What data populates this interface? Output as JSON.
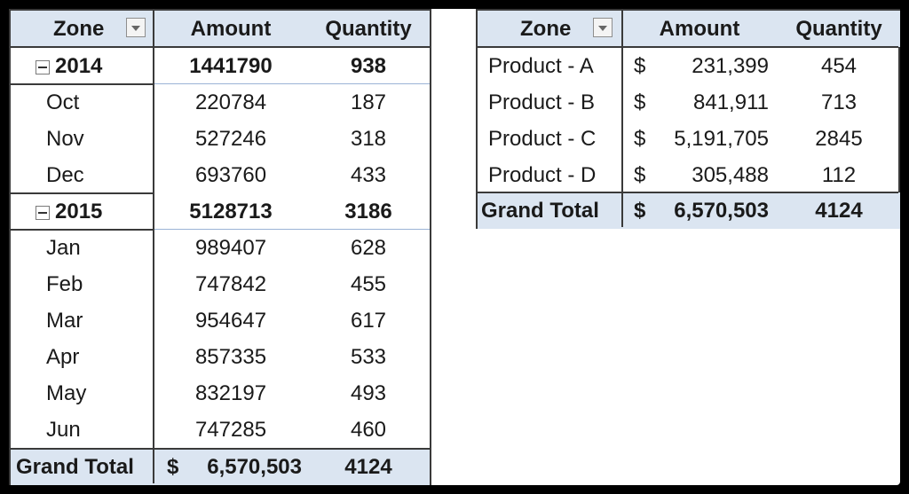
{
  "left_pivot": {
    "headers": {
      "zone": "Zone",
      "amount": "Amount",
      "quantity": "Quantity"
    },
    "rows": [
      {
        "label": "2014",
        "amount": "1441790",
        "quantity": "938",
        "type": "group"
      },
      {
        "label": "Oct",
        "amount": "220784",
        "quantity": "187",
        "type": "item"
      },
      {
        "label": "Nov",
        "amount": "527246",
        "quantity": "318",
        "type": "item"
      },
      {
        "label": "Dec",
        "amount": "693760",
        "quantity": "433",
        "type": "item"
      },
      {
        "label": "2015",
        "amount": "5128713",
        "quantity": "3186",
        "type": "group"
      },
      {
        "label": "Jan",
        "amount": "989407",
        "quantity": "628",
        "type": "item"
      },
      {
        "label": "Feb",
        "amount": "747842",
        "quantity": "455",
        "type": "item"
      },
      {
        "label": "Mar",
        "amount": "954647",
        "quantity": "617",
        "type": "item"
      },
      {
        "label": "Apr",
        "amount": "857335",
        "quantity": "533",
        "type": "item"
      },
      {
        "label": "May",
        "amount": "832197",
        "quantity": "493",
        "type": "item"
      },
      {
        "label": "Jun",
        "amount": "747285",
        "quantity": "460",
        "type": "item"
      }
    ],
    "grand_total": {
      "label": "Grand Total",
      "currency": "$",
      "amount": "6,570,503",
      "quantity": "4124"
    }
  },
  "right_pivot": {
    "headers": {
      "zone": "Zone",
      "amount": "Amount",
      "quantity": "Quantity"
    },
    "rows": [
      {
        "label": "Product - A",
        "currency": "$",
        "amount": "231,399",
        "quantity": "454"
      },
      {
        "label": "Product - B",
        "currency": "$",
        "amount": "841,911",
        "quantity": "713"
      },
      {
        "label": "Product - C",
        "currency": "$",
        "amount": "5,191,705",
        "quantity": "2845"
      },
      {
        "label": "Product - D",
        "currency": "$",
        "amount": "305,488",
        "quantity": "112"
      }
    ],
    "grand_total": {
      "label": "Grand Total",
      "currency": "$",
      "amount": "6,570,503",
      "quantity": "4124"
    }
  },
  "colors": {
    "header_fill": "#dbe5f1",
    "border": "#3a3a3a",
    "frame": "#000000"
  },
  "icons": {
    "filter": "dropdown-arrow-icon",
    "collapse": "collapse-minus-icon"
  }
}
